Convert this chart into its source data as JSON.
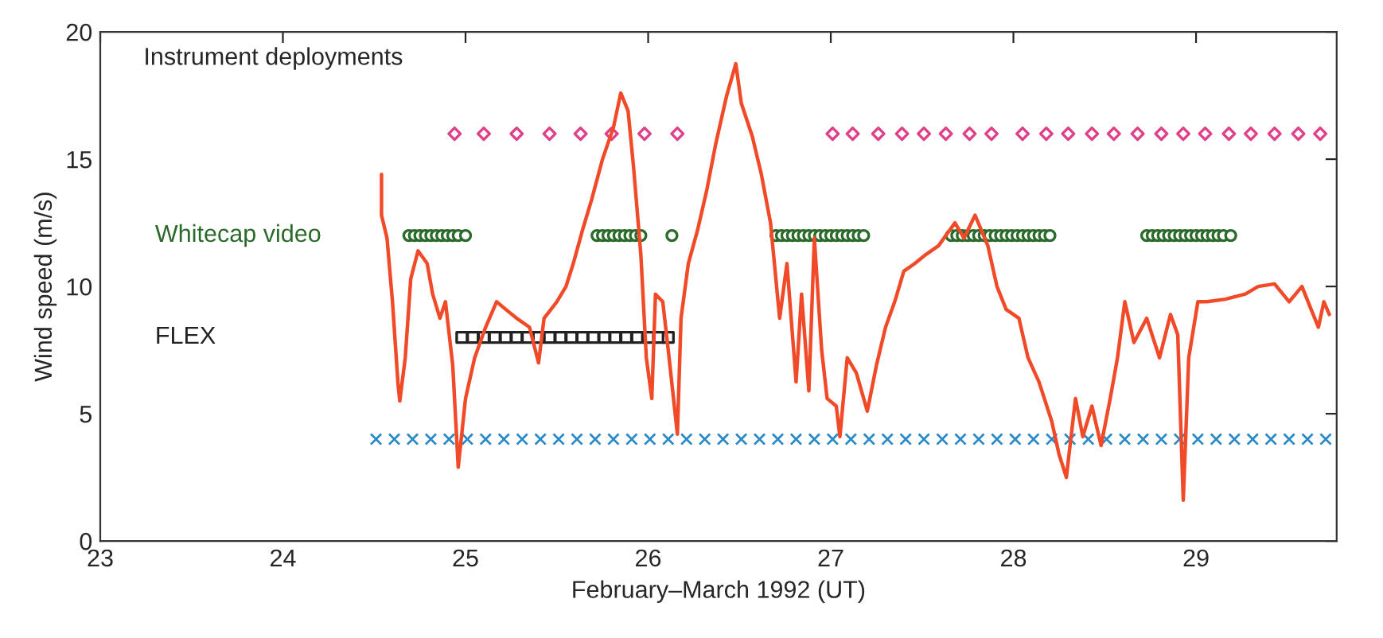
{
  "chart_data": {
    "type": "line",
    "xlabel": "February–March 1992 (UT)",
    "ylabel": "Wind speed (m/s)",
    "xlim": [
      23,
      29.77
    ],
    "xticks": [
      23,
      24,
      25,
      26,
      27,
      28,
      29
    ],
    "ylim": [
      0,
      20
    ],
    "yticks": [
      0,
      5,
      10,
      15,
      20
    ],
    "grid": false,
    "legend": false,
    "line_style": "solid",
    "annotations": [
      "Instrument deployments"
    ],
    "series": [
      {
        "color": "#f04a28",
        "marker": "none",
        "x": [
          24.54,
          24.54,
          24.57,
          24.6,
          24.63,
          24.64,
          24.67,
          24.7,
          24.74,
          24.79,
          24.82,
          24.86,
          24.89,
          24.93,
          24.96,
          25.0,
          25.05,
          25.11,
          25.17,
          25.22,
          25.28,
          25.35,
          25.4,
          25.43,
          25.5,
          25.55,
          25.59,
          25.64,
          25.69,
          25.75,
          25.81,
          25.85,
          25.89,
          25.92,
          25.96,
          25.99,
          26.02,
          26.04,
          26.08,
          26.11,
          26.16,
          26.18,
          26.22,
          26.27,
          26.32,
          26.37,
          26.43,
          26.48,
          26.51,
          26.57,
          26.62,
          26.67,
          26.72,
          26.76,
          26.81,
          26.84,
          26.88,
          26.91,
          26.95,
          26.98,
          27.03,
          27.05,
          27.09,
          27.14,
          27.2,
          27.25,
          27.3,
          27.35,
          27.4,
          27.46,
          27.52,
          27.59,
          27.68,
          27.73,
          27.79,
          27.86,
          27.91,
          27.96,
          28.03,
          28.08,
          28.14,
          28.21,
          28.25,
          28.29,
          28.34,
          28.38,
          28.43,
          28.48,
          28.53,
          28.57,
          28.61,
          28.66,
          28.73,
          28.8,
          28.86,
          28.9,
          28.93,
          28.96,
          29.01,
          29.06,
          29.16,
          29.27,
          29.34,
          29.43,
          29.51,
          29.58,
          29.63,
          29.67,
          29.7,
          29.73
        ],
        "values": [
          14.4,
          12.8,
          11.9,
          9.4,
          6.2,
          5.5,
          7.2,
          10.3,
          11.4,
          10.9,
          9.7,
          8.75,
          9.4,
          6.9,
          2.9,
          5.6,
          7.2,
          8.4,
          9.4,
          9.1,
          8.75,
          8.4,
          7.0,
          8.75,
          9.4,
          10.0,
          10.9,
          12.2,
          13.4,
          15.0,
          16.25,
          17.6,
          16.9,
          14.7,
          11.25,
          7.2,
          5.6,
          9.7,
          9.4,
          7.5,
          4.2,
          8.75,
          10.9,
          12.2,
          13.75,
          15.6,
          17.5,
          18.75,
          17.2,
          15.9,
          14.4,
          12.5,
          8.75,
          10.9,
          6.25,
          9.7,
          5.9,
          11.9,
          7.5,
          5.6,
          5.3,
          4.1,
          7.2,
          6.6,
          5.1,
          6.9,
          8.4,
          9.4,
          10.6,
          10.9,
          11.25,
          11.6,
          12.5,
          11.9,
          12.8,
          11.6,
          10.0,
          9.1,
          8.75,
          7.2,
          6.25,
          4.7,
          3.4,
          2.5,
          5.6,
          4.1,
          5.3,
          3.75,
          5.6,
          7.2,
          9.4,
          7.8,
          8.75,
          7.2,
          8.9,
          8.1,
          1.6,
          7.2,
          9.4,
          9.4,
          9.5,
          9.7,
          10.0,
          10.1,
          9.4,
          10.0,
          9.1,
          8.4,
          9.4,
          8.9
        ]
      },
      {
        "type": "scatter",
        "color": "#e0408a",
        "marker": "diamond",
        "x": [
          24.94,
          25.1,
          25.28,
          25.46,
          25.63,
          25.8,
          25.98,
          26.16,
          27.01,
          27.12,
          27.26,
          27.39,
          27.51,
          27.63,
          27.76,
          27.88,
          28.05,
          28.18,
          28.3,
          28.43,
          28.55,
          28.68,
          28.81,
          28.93,
          29.05,
          29.18,
          29.3,
          29.43,
          29.56,
          29.68
        ],
        "values": [
          16,
          16,
          16,
          16,
          16,
          16,
          16,
          16,
          16,
          16,
          16,
          16,
          16,
          16,
          16,
          16,
          16,
          16,
          16,
          16,
          16,
          16,
          16,
          16,
          16,
          16,
          16,
          16,
          16,
          16
        ]
      },
      {
        "type": "scatter",
        "name": "Whitecap video",
        "color": "#2a6a2a",
        "marker": "circle",
        "x": [
          24.69,
          24.72,
          24.75,
          24.78,
          24.81,
          24.84,
          24.87,
          24.9,
          24.93,
          24.96,
          25.0,
          25.72,
          25.75,
          25.78,
          25.81,
          25.84,
          25.87,
          25.9,
          25.93,
          25.96,
          26.13,
          26.7,
          26.73,
          26.76,
          26.79,
          26.82,
          26.85,
          26.88,
          26.91,
          26.94,
          26.97,
          27.0,
          27.03,
          27.06,
          27.09,
          27.12,
          27.15,
          27.18,
          27.66,
          27.69,
          27.72,
          27.75,
          27.78,
          27.81,
          27.84,
          27.87,
          27.9,
          27.93,
          27.96,
          27.99,
          28.02,
          28.05,
          28.08,
          28.11,
          28.14,
          28.17,
          28.2,
          28.73,
          28.76,
          28.79,
          28.82,
          28.85,
          28.88,
          28.91,
          28.94,
          28.97,
          29.0,
          29.03,
          29.06,
          29.09,
          29.12,
          29.15,
          29.19
        ],
        "values": [
          12,
          12,
          12,
          12,
          12,
          12,
          12,
          12,
          12,
          12,
          12,
          12,
          12,
          12,
          12,
          12,
          12,
          12,
          12,
          12,
          12,
          12,
          12,
          12,
          12,
          12,
          12,
          12,
          12,
          12,
          12,
          12,
          12,
          12,
          12,
          12,
          12,
          12,
          12,
          12,
          12,
          12,
          12,
          12,
          12,
          12,
          12,
          12,
          12,
          12,
          12,
          12,
          12,
          12,
          12,
          12,
          12,
          12,
          12,
          12,
          12,
          12,
          12,
          12,
          12,
          12,
          12,
          12,
          12,
          12,
          12,
          12,
          12
        ]
      },
      {
        "type": "scatter",
        "name": "FLEX",
        "color": "#222222",
        "marker": "square",
        "x": [
          24.98,
          25.04,
          25.1,
          25.16,
          25.22,
          25.28,
          25.34,
          25.4,
          25.46,
          25.52,
          25.58,
          25.64,
          25.7,
          25.76,
          25.82,
          25.88,
          25.94,
          26.0,
          26.06,
          26.11
        ],
        "values": [
          8,
          8,
          8,
          8,
          8,
          8,
          8,
          8,
          8,
          8,
          8,
          8,
          8,
          8,
          8,
          8,
          8,
          8,
          8,
          8
        ]
      },
      {
        "type": "scatter",
        "color": "#2a8ac8",
        "marker": "cross",
        "x": [
          24.51,
          24.61,
          24.71,
          24.81,
          24.91,
          25.01,
          25.11,
          25.21,
          25.31,
          25.41,
          25.51,
          25.61,
          25.71,
          25.81,
          25.91,
          26.01,
          26.11,
          26.21,
          26.31,
          26.41,
          26.51,
          26.61,
          26.71,
          26.81,
          26.91,
          27.01,
          27.11,
          27.21,
          27.31,
          27.41,
          27.51,
          27.61,
          27.71,
          27.81,
          27.91,
          28.01,
          28.11,
          28.21,
          28.31,
          28.41,
          28.51,
          28.61,
          28.71,
          28.81,
          28.91,
          29.01,
          29.11,
          29.21,
          29.31,
          29.41,
          29.51,
          29.61,
          29.71
        ],
        "values": [
          4,
          4,
          4,
          4,
          4,
          4,
          4,
          4,
          4,
          4,
          4,
          4,
          4,
          4,
          4,
          4,
          4,
          4,
          4,
          4,
          4,
          4,
          4,
          4,
          4,
          4,
          4,
          4,
          4,
          4,
          4,
          4,
          4,
          4,
          4,
          4,
          4,
          4,
          4,
          4,
          4,
          4,
          4,
          4,
          4,
          4,
          4,
          4,
          4,
          4,
          4,
          4,
          4
        ]
      }
    ]
  }
}
